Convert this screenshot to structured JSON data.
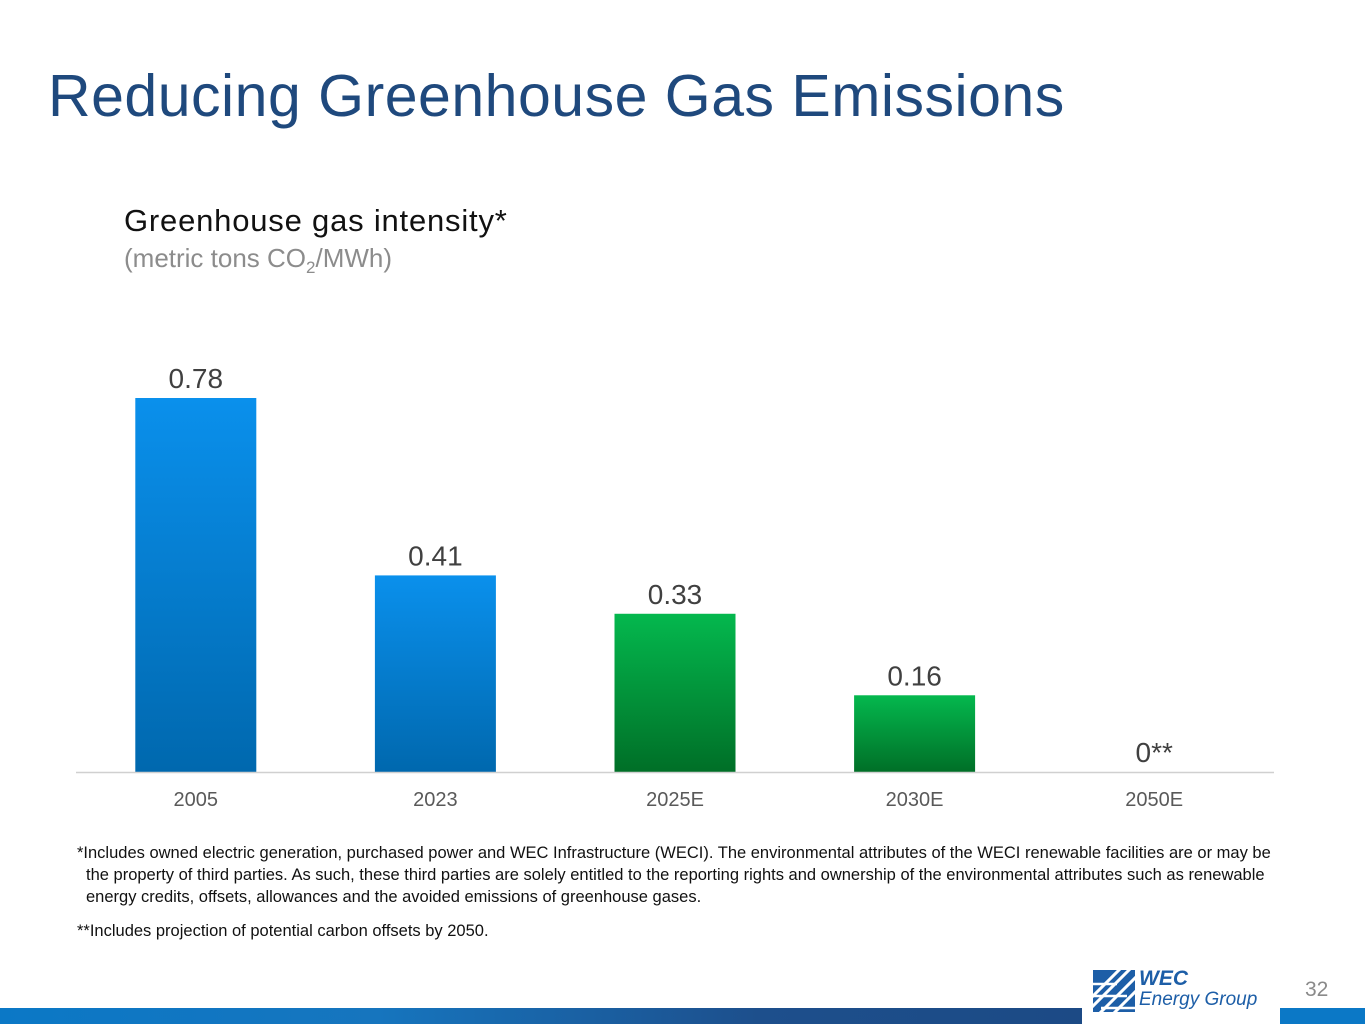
{
  "slide": {
    "title": "Reducing Greenhouse Gas Emissions",
    "page_number": "32"
  },
  "chart_data": {
    "type": "bar",
    "title": "Greenhouse gas intensity*",
    "subtitle_prefix": "(metric tons CO",
    "subtitle_sub": "2",
    "subtitle_suffix": "/MWh)",
    "categories": [
      "2005",
      "2023",
      "2025E",
      "2030E",
      "2050E"
    ],
    "values": [
      0.78,
      0.41,
      0.33,
      0.16,
      0
    ],
    "data_labels": [
      "0.78",
      "0.41",
      "0.33",
      "0.16",
      "0**"
    ],
    "bar_groups": [
      "actual",
      "actual",
      "estimate",
      "estimate",
      "estimate"
    ],
    "ylim": [
      0,
      0.78
    ],
    "xlabel": "",
    "ylabel": "",
    "grid": false,
    "colors": {
      "actual_top": "#0a90ec",
      "actual_bottom": "#0068ae",
      "estimate_top": "#04b84e",
      "estimate_bottom": "#006f27",
      "axis": "#d0d0d0",
      "label": "#404040",
      "tick": "#595959"
    }
  },
  "footnotes": {
    "note1": "*Includes owned electric generation, purchased power and WEC Infrastructure (WECI). The environmental attributes of the WECI renewable facilities are or may be the property of third parties. As such, these third parties are solely entitled to the reporting rights and ownership of the environmental attributes such as renewable energy credits, offsets, allowances and the avoided emissions of greenhouse gases.",
    "note2": "**Includes projection of potential carbon offsets by 2050."
  },
  "logo": {
    "line1": "WEC",
    "line2": "Energy Group",
    "color": "#1d5ea7"
  }
}
